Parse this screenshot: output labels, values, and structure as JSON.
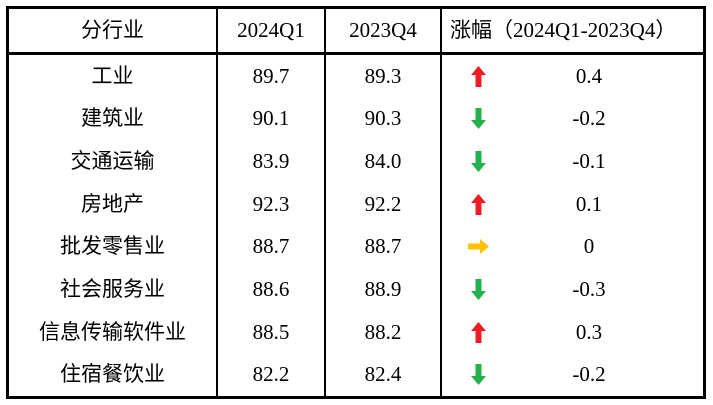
{
  "table": {
    "headers": {
      "industry": "分行业",
      "q1": "2024Q1",
      "q4": "2023Q4",
      "change": "涨幅（2024Q1-2023Q4）"
    },
    "rows": [
      {
        "name": "工业",
        "q1": "89.7",
        "q4": "89.3",
        "trend": "up",
        "change": "0.4"
      },
      {
        "name": "建筑业",
        "q1": "90.1",
        "q4": "90.3",
        "trend": "down",
        "change": "-0.2"
      },
      {
        "name": "交通运输",
        "q1": "83.9",
        "q4": "84.0",
        "trend": "down",
        "change": "-0.1"
      },
      {
        "name": "房地产",
        "q1": "92.3",
        "q4": "92.2",
        "trend": "up",
        "change": "0.1"
      },
      {
        "name": "批发零售业",
        "q1": "88.7",
        "q4": "88.7",
        "trend": "flat",
        "change": "0"
      },
      {
        "name": "社会服务业",
        "q1": "88.6",
        "q4": "88.9",
        "trend": "down",
        "change": "-0.3"
      },
      {
        "name": "信息传输软件业",
        "q1": "88.5",
        "q4": "88.2",
        "trend": "up",
        "change": "0.3"
      },
      {
        "name": "住宿餐饮业",
        "q1": "82.2",
        "q4": "82.4",
        "trend": "down",
        "change": "-0.2"
      }
    ],
    "colors": {
      "up": "#ed1c24",
      "down": "#22b14c",
      "flat": "#ffc000",
      "border": "#000000"
    }
  },
  "chart_data": {
    "type": "table",
    "title": "",
    "columns": [
      "分行业",
      "2024Q1",
      "2023Q4",
      "涨幅（2024Q1-2023Q4）"
    ],
    "categories": [
      "工业",
      "建筑业",
      "交通运输",
      "房地产",
      "批发零售业",
      "社会服务业",
      "信息传输软件业",
      "住宿餐饮业"
    ],
    "series": [
      {
        "name": "2024Q1",
        "values": [
          89.7,
          90.1,
          83.9,
          92.3,
          88.7,
          88.6,
          88.5,
          82.2
        ]
      },
      {
        "name": "2023Q4",
        "values": [
          89.3,
          90.3,
          84.0,
          92.2,
          88.7,
          88.9,
          88.2,
          82.4
        ]
      },
      {
        "name": "涨幅（2024Q1-2023Q4）",
        "values": [
          0.4,
          -0.2,
          -0.1,
          0.1,
          0,
          -0.3,
          0.3,
          -0.2
        ]
      }
    ],
    "legend_position": "none",
    "grid": "table-borders"
  }
}
